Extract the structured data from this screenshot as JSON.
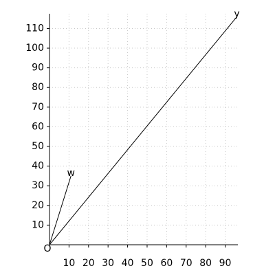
{
  "chart_data": {
    "type": "line",
    "origin_label": "O",
    "xlim": [
      0,
      96.5
    ],
    "ylim": [
      0,
      117.5
    ],
    "xticks": [
      10,
      20,
      30,
      40,
      50,
      60,
      70,
      80,
      90
    ],
    "yticks": [
      10,
      20,
      30,
      40,
      50,
      60,
      70,
      80,
      90,
      100,
      110
    ],
    "grid": true,
    "series": [
      {
        "name": "w",
        "color": "#000000",
        "x": [
          0,
          11
        ],
        "values": [
          0,
          35
        ]
      },
      {
        "name": "y",
        "color": "#000000",
        "x": [
          0,
          96
        ],
        "values": [
          0,
          116
        ]
      }
    ]
  }
}
